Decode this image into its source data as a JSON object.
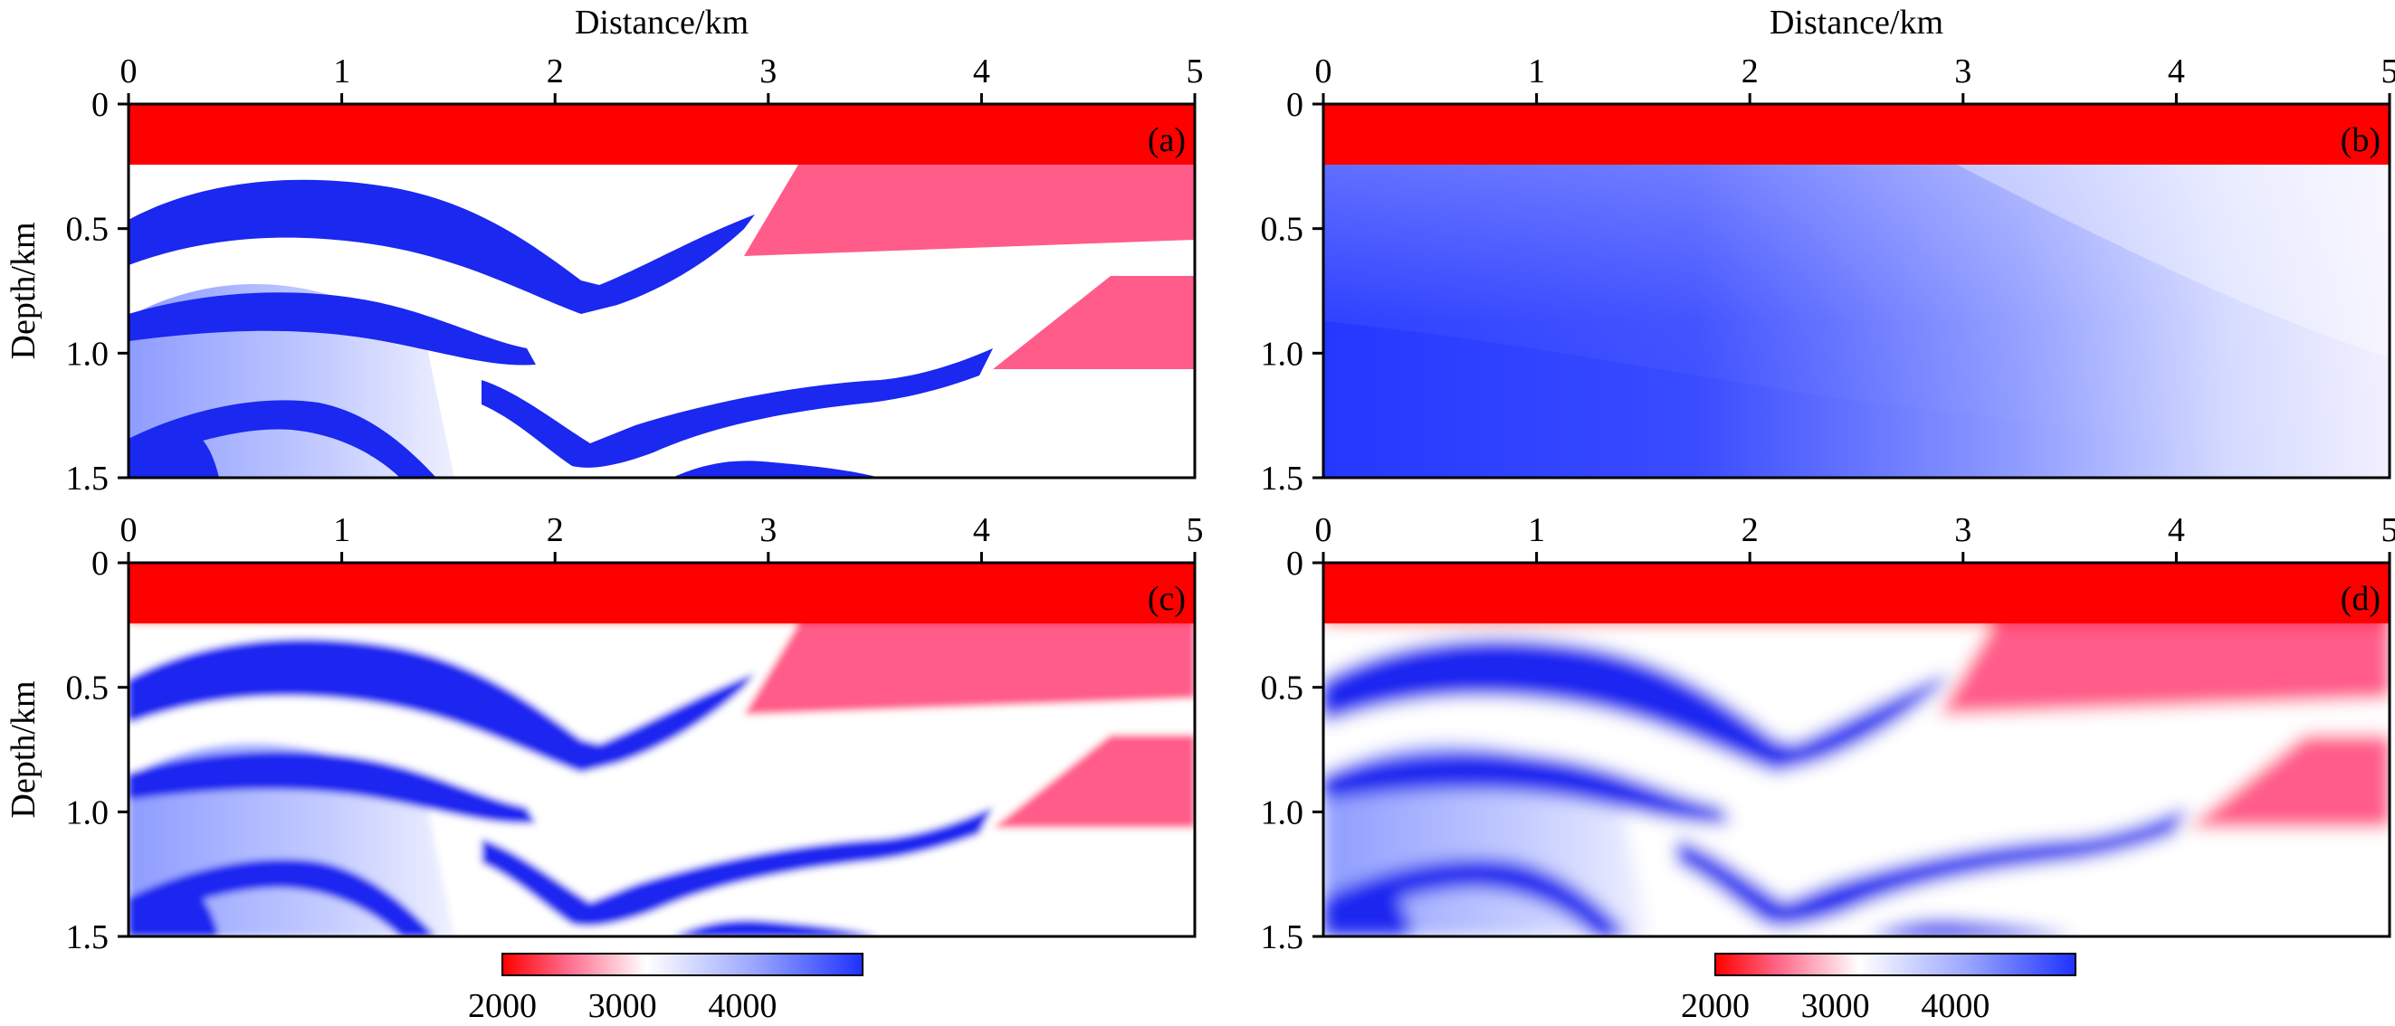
{
  "colors": {
    "low": "#ff0000",
    "mid": "#ffffff",
    "high": "#1e32ff",
    "dark_blue": "#1a28f0",
    "pink": "#ff5c8a",
    "light_blue": "#c8d0ff"
  },
  "chart_data": [
    {
      "type": "heatmap",
      "panel_label": "(a)",
      "xlabel": "Distance/km",
      "ylabel": "Depth/km",
      "xlim": [
        0,
        5
      ],
      "ylim": [
        0,
        1.5
      ],
      "x_ticks": [
        "0",
        "1",
        "2",
        "3",
        "4",
        "5"
      ],
      "y_ticks": [
        "0",
        "0.5",
        "1.0",
        "1.5"
      ]
    },
    {
      "type": "heatmap",
      "panel_label": "(b)",
      "xlabel": "Distance/km",
      "ylabel": "",
      "xlim": [
        0,
        5
      ],
      "ylim": [
        0,
        1.5
      ],
      "x_ticks": [
        "0",
        "1",
        "2",
        "3",
        "4",
        "5"
      ],
      "y_ticks": [
        "0",
        "0.5",
        "1.0",
        "1.5"
      ]
    },
    {
      "type": "heatmap",
      "panel_label": "(c)",
      "xlabel": "",
      "ylabel": "Depth/km",
      "xlim": [
        0,
        5
      ],
      "ylim": [
        0,
        1.5
      ],
      "x_ticks": [
        "0",
        "1",
        "2",
        "3",
        "4",
        "5"
      ],
      "y_ticks": [
        "0",
        "0.5",
        "1.0",
        "1.5"
      ]
    },
    {
      "type": "heatmap",
      "panel_label": "(d)",
      "xlabel": "",
      "ylabel": "",
      "xlim": [
        0,
        5
      ],
      "ylim": [
        0,
        1.5
      ],
      "x_ticks": [
        "0",
        "1",
        "2",
        "3",
        "4",
        "5"
      ],
      "y_ticks": [
        "0",
        "0.5",
        "1.0",
        "1.5"
      ]
    }
  ],
  "colorbars": [
    {
      "ticks": [
        "2000",
        "3000",
        "4000"
      ],
      "range": [
        2000,
        5000
      ]
    },
    {
      "ticks": [
        "2000",
        "3000",
        "4000"
      ],
      "range": [
        2000,
        5000
      ]
    }
  ]
}
